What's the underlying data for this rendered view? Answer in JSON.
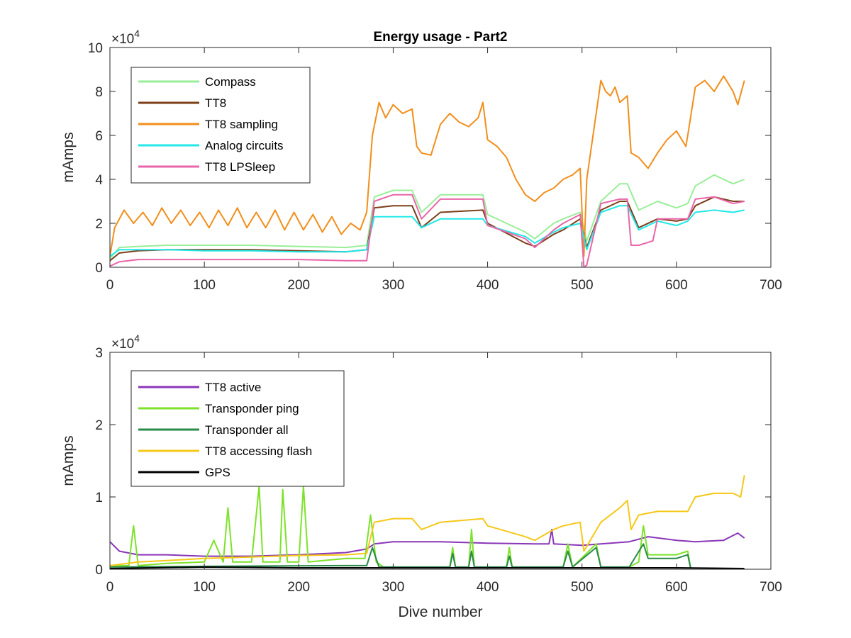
{
  "chart_data": [
    {
      "type": "line",
      "title": "Energy usage - Part2",
      "xlabel": "",
      "ylabel": "mAmps",
      "xlim": [
        0,
        700
      ],
      "ylim": [
        0,
        100000
      ],
      "xticks": [
        0,
        100,
        200,
        300,
        400,
        500,
        600,
        700
      ],
      "xtick_labels": [
        "0",
        "100",
        "200",
        "300",
        "400",
        "500",
        "600",
        "700"
      ],
      "yticks": [
        0,
        20000,
        40000,
        60000,
        80000,
        100000
      ],
      "ytick_labels": [
        "0",
        "2",
        "4",
        "6",
        "8",
        "10"
      ],
      "exponent_label": "×10",
      "exponent_power": "4",
      "legend_position": "top-left",
      "grid": false,
      "series": [
        {
          "name": "Compass",
          "color": "#99ee99",
          "x": [
            0,
            10,
            30,
            60,
            100,
            150,
            200,
            250,
            272,
            280,
            300,
            320,
            330,
            350,
            395,
            400,
            440,
            450,
            470,
            480,
            498,
            505,
            520,
            540,
            548,
            560,
            580,
            600,
            612,
            620,
            640,
            660,
            672
          ],
          "y": [
            4000,
            9000,
            9500,
            10000,
            10000,
            10000,
            9500,
            9000,
            10000,
            32000,
            35000,
            35000,
            25000,
            33000,
            33000,
            24000,
            16000,
            13000,
            20000,
            22000,
            25000,
            12000,
            30000,
            38000,
            38000,
            26000,
            30000,
            27000,
            29000,
            37000,
            42000,
            38000,
            40000
          ]
        },
        {
          "name": "TT8",
          "color": "#7b3f1a",
          "x": [
            0,
            10,
            30,
            60,
            100,
            150,
            200,
            250,
            272,
            280,
            300,
            320,
            330,
            350,
            395,
            400,
            440,
            450,
            470,
            480,
            498,
            505,
            520,
            540,
            548,
            560,
            580,
            600,
            612,
            620,
            640,
            660,
            672
          ],
          "y": [
            3000,
            6500,
            7500,
            8000,
            8000,
            8000,
            7500,
            7000,
            8000,
            27000,
            28000,
            28000,
            18000,
            25000,
            26000,
            20000,
            11000,
            9500,
            15000,
            17000,
            22000,
            9000,
            26000,
            30000,
            30000,
            18000,
            22000,
            21000,
            22000,
            28000,
            32000,
            30000,
            30000
          ]
        },
        {
          "name": "TT8 sampling",
          "color": "#f28e1c",
          "x": [
            0,
            5,
            15,
            25,
            35,
            45,
            55,
            65,
            75,
            85,
            95,
            105,
            115,
            125,
            135,
            145,
            155,
            165,
            175,
            185,
            195,
            205,
            215,
            225,
            235,
            245,
            255,
            265,
            272,
            278,
            285,
            292,
            300,
            310,
            320,
            325,
            330,
            340,
            350,
            360,
            370,
            380,
            390,
            395,
            400,
            410,
            420,
            430,
            440,
            450,
            460,
            470,
            480,
            490,
            498,
            502,
            505,
            510,
            515,
            520,
            525,
            530,
            535,
            540,
            548,
            552,
            560,
            570,
            580,
            590,
            600,
            610,
            612,
            620,
            630,
            640,
            650,
            660,
            665,
            672
          ],
          "y": [
            5000,
            18000,
            26000,
            20000,
            25000,
            19000,
            27000,
            20000,
            26000,
            19000,
            25000,
            18000,
            26000,
            19000,
            27000,
            18000,
            25000,
            18000,
            26000,
            17000,
            25000,
            17000,
            24000,
            16000,
            23000,
            15000,
            20000,
            17000,
            25000,
            60000,
            75000,
            68000,
            74000,
            70000,
            72000,
            55000,
            52000,
            51000,
            65000,
            70000,
            66000,
            64000,
            68000,
            75000,
            58000,
            55000,
            50000,
            40000,
            33000,
            30000,
            34000,
            36000,
            40000,
            42000,
            45000,
            5000,
            40000,
            55000,
            70000,
            85000,
            80000,
            78000,
            82000,
            75000,
            78000,
            52000,
            50000,
            45000,
            52000,
            58000,
            62000,
            55000,
            60000,
            82000,
            85000,
            80000,
            87000,
            80000,
            74000,
            85000
          ]
        },
        {
          "name": "Analog circuits",
          "color": "#22e8e8",
          "x": [
            0,
            10,
            30,
            60,
            100,
            150,
            200,
            250,
            272,
            280,
            300,
            320,
            330,
            350,
            395,
            400,
            440,
            450,
            470,
            480,
            498,
            505,
            520,
            540,
            548,
            560,
            580,
            600,
            612,
            620,
            640,
            660,
            672
          ],
          "y": [
            5000,
            8000,
            8000,
            8000,
            7500,
            7500,
            7000,
            7000,
            8000,
            23000,
            23000,
            23000,
            18000,
            22000,
            22000,
            19000,
            14000,
            11000,
            16000,
            18000,
            20000,
            8000,
            25000,
            28000,
            28000,
            17000,
            21000,
            19000,
            21000,
            25000,
            26000,
            25000,
            26000
          ]
        },
        {
          "name": "TT8 LPSleep",
          "color": "#e866a8",
          "x": [
            0,
            10,
            30,
            60,
            100,
            150,
            200,
            250,
            272,
            280,
            300,
            320,
            330,
            350,
            395,
            400,
            440,
            450,
            470,
            480,
            498,
            502,
            505,
            520,
            540,
            548,
            552,
            560,
            575,
            580,
            600,
            612,
            620,
            640,
            660,
            672
          ],
          "y": [
            500,
            2500,
            3500,
            3500,
            3500,
            3500,
            3500,
            3000,
            3000,
            30000,
            33000,
            33000,
            22000,
            31000,
            31000,
            19000,
            13000,
            9000,
            17000,
            20000,
            24000,
            0,
            1000,
            29000,
            31000,
            31000,
            10000,
            10000,
            12000,
            22000,
            22000,
            22000,
            31000,
            32000,
            29000,
            30000
          ]
        }
      ]
    },
    {
      "type": "line",
      "title": "",
      "xlabel": "Dive number",
      "ylabel": "mAmps",
      "xlim": [
        0,
        700
      ],
      "ylim": [
        0,
        30000
      ],
      "xticks": [
        0,
        100,
        200,
        300,
        400,
        500,
        600,
        700
      ],
      "xtick_labels": [
        "0",
        "100",
        "200",
        "300",
        "400",
        "500",
        "600",
        "700"
      ],
      "yticks": [
        0,
        10000,
        20000,
        30000
      ],
      "ytick_labels": [
        "0",
        "1",
        "2",
        "3"
      ],
      "exponent_label": "×10",
      "exponent_power": "4",
      "legend_position": "top-left",
      "grid": false,
      "series": [
        {
          "name": "TT8 active",
          "color": "#8a36b8",
          "x": [
            0,
            10,
            30,
            60,
            100,
            150,
            200,
            250,
            272,
            280,
            300,
            350,
            400,
            450,
            465,
            468,
            470,
            500,
            520,
            550,
            570,
            600,
            620,
            650,
            665,
            672
          ],
          "y": [
            3800,
            2500,
            2000,
            2000,
            1800,
            1800,
            2000,
            2300,
            2800,
            3500,
            3800,
            3800,
            3600,
            3500,
            3500,
            5500,
            3500,
            3300,
            3500,
            3800,
            4500,
            4000,
            3800,
            4000,
            5000,
            4300
          ]
        },
        {
          "name": "Transponder ping",
          "color": "#7de22a",
          "x": [
            0,
            20,
            25,
            30,
            60,
            100,
            110,
            120,
            125,
            130,
            150,
            158,
            162,
            170,
            180,
            183,
            188,
            200,
            205,
            210,
            250,
            270,
            276,
            282,
            290,
            350,
            360,
            363,
            366,
            380,
            383,
            386,
            400,
            420,
            423,
            426,
            450,
            480,
            485,
            490,
            515,
            520,
            550,
            560,
            565,
            570,
            600,
            612,
            615
          ],
          "y": [
            500,
            500,
            6000,
            500,
            800,
            1000,
            4000,
            1000,
            8500,
            1000,
            1000,
            11500,
            1000,
            1000,
            1000,
            11000,
            1000,
            1000,
            11500,
            1000,
            1500,
            1500,
            7500,
            1000,
            300,
            300,
            300,
            3000,
            300,
            300,
            5500,
            300,
            300,
            300,
            3000,
            300,
            300,
            300,
            3500,
            300,
            3500,
            300,
            300,
            1000,
            6000,
            2000,
            2000,
            2500,
            200
          ]
        },
        {
          "name": "Transponder all",
          "color": "#2a8a4a",
          "x": [
            0,
            100,
            250,
            272,
            278,
            285,
            350,
            360,
            363,
            366,
            380,
            383,
            386,
            420,
            423,
            426,
            480,
            485,
            490,
            515,
            520,
            550,
            565,
            570,
            600,
            612,
            615
          ],
          "y": [
            300,
            400,
            500,
            500,
            3000,
            300,
            300,
            300,
            2200,
            300,
            300,
            2500,
            300,
            300,
            1800,
            300,
            300,
            2500,
            300,
            3000,
            300,
            300,
            3500,
            1500,
            1500,
            2000,
            200
          ]
        },
        {
          "name": "TT8 accessing flash",
          "color": "#f5c818",
          "x": [
            0,
            30,
            60,
            100,
            150,
            200,
            250,
            272,
            280,
            300,
            320,
            330,
            350,
            395,
            400,
            440,
            450,
            470,
            480,
            498,
            502,
            520,
            540,
            548,
            552,
            560,
            580,
            600,
            612,
            620,
            640,
            660,
            668,
            672
          ],
          "y": [
            500,
            1000,
            1200,
            1500,
            1700,
            1900,
            2000,
            2200,
            6500,
            7000,
            7000,
            5500,
            6500,
            7000,
            6000,
            4500,
            4000,
            5500,
            6000,
            6500,
            2500,
            6500,
            8500,
            9500,
            5500,
            7500,
            8000,
            8000,
            8000,
            10000,
            10500,
            10500,
            10000,
            13000
          ]
        },
        {
          "name": "GPS",
          "color": "#000000",
          "x": [
            0,
            100,
            200,
            272,
            300,
            400,
            500,
            600,
            672
          ],
          "y": [
            100,
            300,
            200,
            200,
            200,
            200,
            200,
            200,
            100
          ]
        }
      ]
    }
  ]
}
